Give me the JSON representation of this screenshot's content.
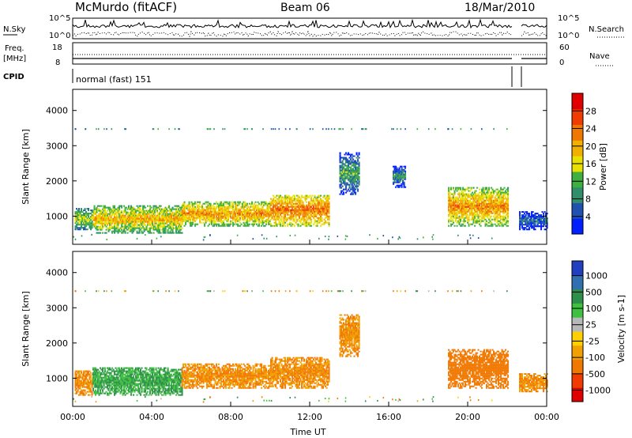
{
  "header": {
    "station": "McMurdo (fitACF)",
    "beam": "Beam 06",
    "date": "18/Mar/2010"
  },
  "strip_labels": {
    "nsky": "N.Sky",
    "nsky_ticks": [
      "10^5",
      "10^0"
    ],
    "nsearch": "N.Search",
    "nsearch_ticks": [
      "10^5",
      "10^0"
    ],
    "freq_line1": "Freq.",
    "freq_line2": "[MHz]",
    "freq_ticks": [
      "18",
      "8"
    ],
    "nave": "Nave",
    "nave_ticks": [
      "60",
      "0"
    ],
    "cpid": "CPID",
    "cpid_value": "normal (fast) 151"
  },
  "colors": {
    "power_scale": [
      "#0020ff",
      "#2050b0",
      "#2e8f6a",
      "#3fb040",
      "#e8e000",
      "#f0b000",
      "#f07800",
      "#f03c00",
      "#e00000"
    ],
    "velocity_scale": [
      "#e00000",
      "#f03c00",
      "#f07800",
      "#f0a000",
      "#ffd000",
      "#b8b8b8",
      "#40c040",
      "#2e8f4a",
      "#3070b0",
      "#2040c0"
    ]
  },
  "chart_data": [
    {
      "type": "heatmap",
      "quantity": "Power",
      "ylabel": "Slant Range [km]",
      "yticks": [
        "1000",
        "2000",
        "3000",
        "4000"
      ],
      "ylim": [
        200,
        4600
      ],
      "xlim": [
        0,
        24
      ],
      "xticks": [],
      "colorbar_label": "Power [dB]",
      "colorbar_ticks": [
        "4",
        "8",
        "12",
        "16",
        "20",
        "24",
        "28"
      ],
      "colorbar_range": [
        0,
        32
      ],
      "echo_regions": [
        {
          "t_start": 0.1,
          "t_end": 1.0,
          "r_min": 600,
          "r_max": 1200,
          "level": 16
        },
        {
          "t_start": 1.0,
          "t_end": 5.5,
          "r_min": 500,
          "r_max": 1300,
          "level": 20
        },
        {
          "t_start": 5.5,
          "t_end": 10.0,
          "r_min": 700,
          "r_max": 1400,
          "level": 22
        },
        {
          "t_start": 10.0,
          "t_end": 13.0,
          "r_min": 700,
          "r_max": 1600,
          "level": 24
        },
        {
          "t_start": 13.5,
          "t_end": 14.5,
          "r_min": 1600,
          "r_max": 2800,
          "level": 12
        },
        {
          "t_start": 16.2,
          "t_end": 16.8,
          "r_min": 1800,
          "r_max": 2400,
          "level": 10
        },
        {
          "t_start": 19.0,
          "t_end": 22.0,
          "r_min": 700,
          "r_max": 1800,
          "level": 22
        },
        {
          "t_start": 22.6,
          "t_end": 24.0,
          "r_min": 600,
          "r_max": 1100,
          "level": 8
        }
      ]
    },
    {
      "type": "heatmap",
      "quantity": "Velocity",
      "xlabel": "Time UT",
      "ylabel": "Slant Range [km]",
      "yticks": [
        "1000",
        "2000",
        "3000",
        "4000"
      ],
      "ylim": [
        200,
        4600
      ],
      "xlim": [
        0,
        24
      ],
      "xticks": [
        "00:00",
        "04:00",
        "08:00",
        "12:00",
        "16:00",
        "20:00",
        "00:00"
      ],
      "colorbar_label": "Velocity [m s-1]",
      "colorbar_ticks": [
        "1000",
        "500",
        "100",
        "25",
        "-25",
        "-100",
        "-500",
        "-1000"
      ],
      "echo_regions": [
        {
          "t_start": 0.1,
          "t_end": 1.0,
          "r_min": 500,
          "r_max": 1200,
          "velocity": -100
        },
        {
          "t_start": 1.0,
          "t_end": 5.5,
          "r_min": 500,
          "r_max": 1300,
          "velocity": 100
        },
        {
          "t_start": 5.5,
          "t_end": 10.0,
          "r_min": 700,
          "r_max": 1400,
          "velocity": -100
        },
        {
          "t_start": 10.0,
          "t_end": 13.0,
          "r_min": 700,
          "r_max": 1600,
          "velocity": -100
        },
        {
          "t_start": 13.5,
          "t_end": 14.5,
          "r_min": 1600,
          "r_max": 2800,
          "velocity": -100
        },
        {
          "t_start": 19.0,
          "t_end": 22.0,
          "r_min": 700,
          "r_max": 1800,
          "velocity": -300
        },
        {
          "t_start": 22.6,
          "t_end": 24.0,
          "r_min": 600,
          "r_max": 1100,
          "velocity": -100
        }
      ]
    }
  ]
}
